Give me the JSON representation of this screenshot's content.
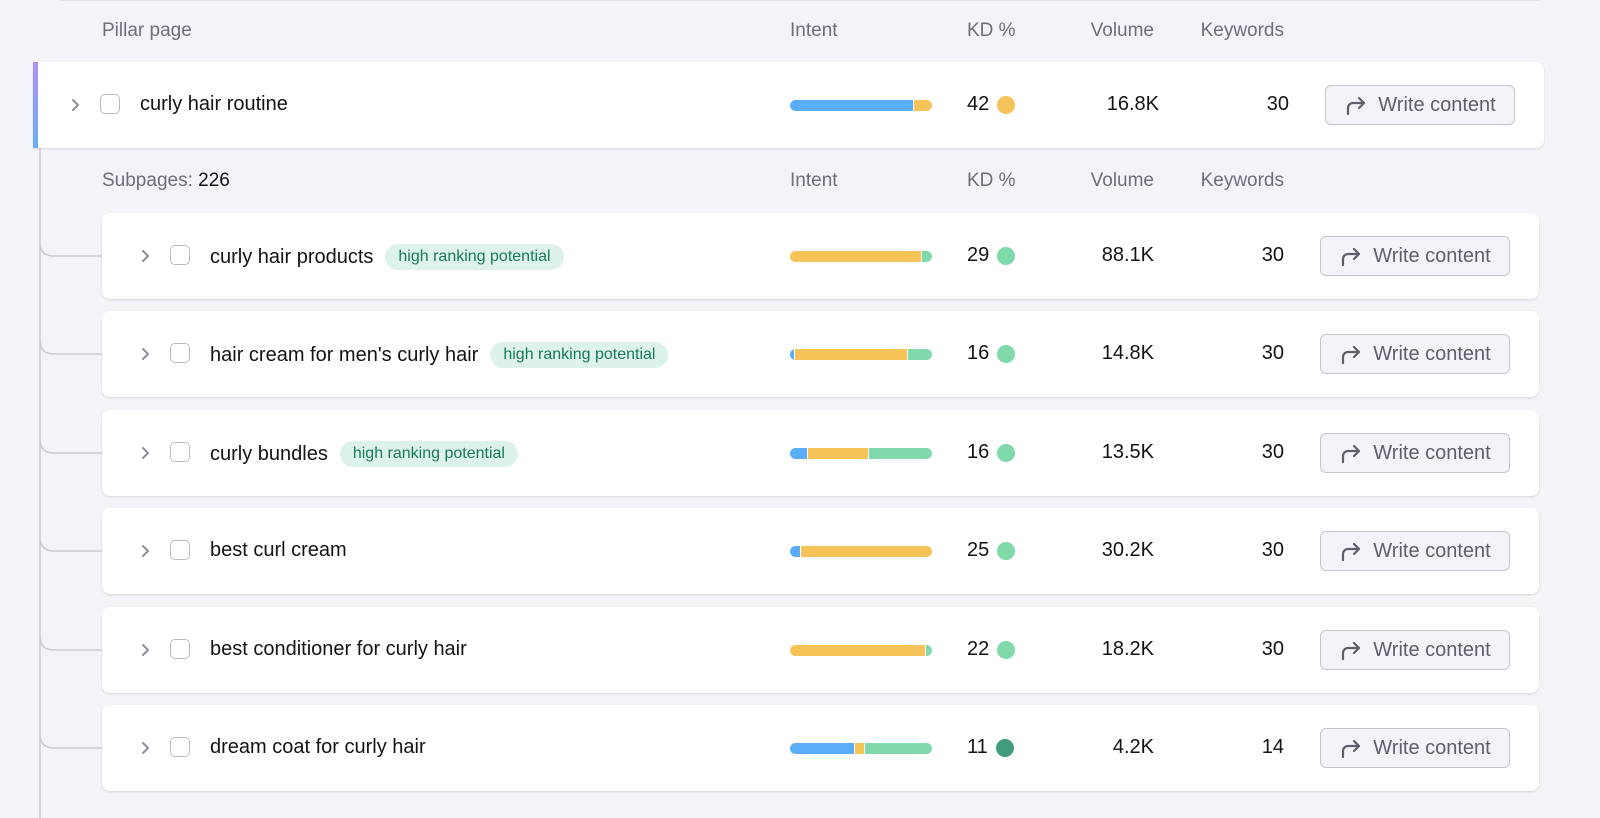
{
  "columns": {
    "pillar": "Pillar page",
    "intent": "Intent",
    "kd": "KD %",
    "volume": "Volume",
    "keywords": "Keywords"
  },
  "subpages_header": {
    "label": "Subpages:",
    "count": "226"
  },
  "colors": {
    "informational": "#5aaef8",
    "commercial": "#f5c357",
    "transactional": "#80d9ab",
    "kd_easy": "#80d9ab",
    "kd_very_easy": "#429b7c",
    "kd_possible": "#f5c357",
    "badge_bg": "#ddf3ea",
    "badge_text": "#187a53"
  },
  "write_label": "Write content",
  "pillar": {
    "keyword": "curly hair routine",
    "intent": [
      {
        "type": "informational",
        "pct": 87
      },
      {
        "type": "commercial",
        "pct": 13
      }
    ],
    "kd": "42",
    "kd_level": "kd_possible",
    "volume": "16.8K",
    "keywords": "30"
  },
  "subpages": [
    {
      "keyword": "curly hair products",
      "badge": "high ranking potential",
      "intent": [
        {
          "type": "commercial",
          "pct": 93
        },
        {
          "type": "transactional",
          "pct": 7
        }
      ],
      "kd": "29",
      "kd_level": "kd_easy",
      "volume": "88.1K",
      "keywords": "30"
    },
    {
      "keyword": "hair cream for men's curly hair",
      "badge": "high ranking potential",
      "intent": [
        {
          "type": "informational",
          "pct": 3
        },
        {
          "type": "commercial",
          "pct": 80
        },
        {
          "type": "transactional",
          "pct": 17
        }
      ],
      "kd": "16",
      "kd_level": "kd_easy",
      "volume": "14.8K",
      "keywords": "30"
    },
    {
      "keyword": "curly bundles",
      "badge": "high ranking potential",
      "intent": [
        {
          "type": "informational",
          "pct": 12
        },
        {
          "type": "commercial",
          "pct": 43
        },
        {
          "type": "transactional",
          "pct": 45
        }
      ],
      "kd": "16",
      "kd_level": "kd_easy",
      "volume": "13.5K",
      "keywords": "30"
    },
    {
      "keyword": "best curl cream",
      "intent": [
        {
          "type": "informational",
          "pct": 7
        },
        {
          "type": "commercial",
          "pct": 93
        }
      ],
      "kd": "25",
      "kd_level": "kd_easy",
      "volume": "30.2K",
      "keywords": "30"
    },
    {
      "keyword": "best conditioner for curly hair",
      "intent": [
        {
          "type": "commercial",
          "pct": 96
        },
        {
          "type": "transactional",
          "pct": 4
        }
      ],
      "kd": "22",
      "kd_level": "kd_easy",
      "volume": "18.2K",
      "keywords": "30"
    },
    {
      "keyword": "dream coat for curly hair",
      "intent": [
        {
          "type": "informational",
          "pct": 46
        },
        {
          "type": "commercial",
          "pct": 6
        },
        {
          "type": "transactional",
          "pct": 48
        }
      ],
      "kd": "11",
      "kd_level": "kd_very_easy",
      "volume": "4.2K",
      "keywords": "14"
    }
  ]
}
